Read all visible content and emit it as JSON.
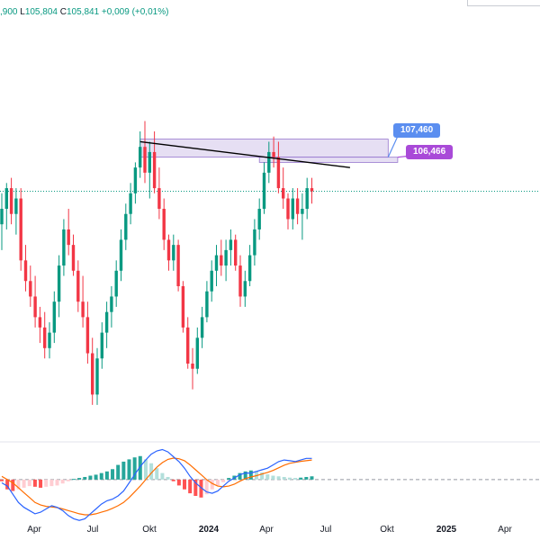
{
  "legend": {
    "open_value": ",900",
    "low_key": "L",
    "low_value": "105,804",
    "close_key": "C",
    "close_value": "105,841",
    "change": "+0,009 (+0,01%)"
  },
  "price_labels": [
    {
      "text": "107,460",
      "color": "#5b8ef0"
    },
    {
      "text": "106,466",
      "color": "#a94ad8"
    }
  ],
  "colors": {
    "up": "#089981",
    "down": "#f23645",
    "macd_line": "#2962ff",
    "signal_line": "#ff6d00",
    "hist_up_strong": "#26a69a",
    "hist_up_weak": "#b2dfdb",
    "hist_down_strong": "#ff5252",
    "hist_down_weak": "#ffcdd2",
    "current_price_line": "#089981"
  },
  "chart_data": [
    {
      "type": "candlestick",
      "title": "",
      "xlabel": "",
      "ylabel": "",
      "x_ticks": [
        "Apr",
        "Jul",
        "Okt",
        "2024",
        "Apr",
        "Jul",
        "Okt",
        "2025",
        "Apr"
      ],
      "ylim": [
        101.0,
        108.5
      ],
      "grid": false,
      "series": [
        {
          "values": [
            [
              105.2,
              105.8,
              104.7,
              105.5
            ],
            [
              105.5,
              106.0,
              105.1,
              105.9
            ],
            [
              105.9,
              106.1,
              105.2,
              105.4
            ],
            [
              105.4,
              105.9,
              105.0,
              105.7
            ],
            [
              105.7,
              105.9,
              104.3,
              104.5
            ],
            [
              104.5,
              104.8,
              103.9,
              104.1
            ],
            [
              104.1,
              104.4,
              103.6,
              103.8
            ],
            [
              103.8,
              104.2,
              103.2,
              103.4
            ],
            [
              103.4,
              103.6,
              102.9,
              103.2
            ],
            [
              103.2,
              103.5,
              102.6,
              102.8
            ],
            [
              102.8,
              103.3,
              102.6,
              103.1
            ],
            [
              103.1,
              103.9,
              102.9,
              103.7
            ],
            [
              103.7,
              104.6,
              103.4,
              104.4
            ],
            [
              104.4,
              105.3,
              104.2,
              105.1
            ],
            [
              105.1,
              105.5,
              104.6,
              104.8
            ],
            [
              104.8,
              105.0,
              104.2,
              104.3
            ],
            [
              104.3,
              104.5,
              103.5,
              103.7
            ],
            [
              103.7,
              104.2,
              103.2,
              103.4
            ],
            [
              103.4,
              103.7,
              102.5,
              102.7
            ],
            [
              102.7,
              103.0,
              101.7,
              101.9
            ],
            [
              101.9,
              102.8,
              101.7,
              102.6
            ],
            [
              102.6,
              103.3,
              102.4,
              103.1
            ],
            [
              103.1,
              103.7,
              102.8,
              103.5
            ],
            [
              103.5,
              104.0,
              103.2,
              103.8
            ],
            [
              103.8,
              104.5,
              103.6,
              104.3
            ],
            [
              104.3,
              105.1,
              104.1,
              104.9
            ],
            [
              104.9,
              105.6,
              104.7,
              105.4
            ],
            [
              105.4,
              106.0,
              105.2,
              105.8
            ],
            [
              105.8,
              106.4,
              105.6,
              106.3
            ],
            [
              106.3,
              107.0,
              106.1,
              106.7
            ],
            [
              106.7,
              107.2,
              106.0,
              106.2
            ],
            [
              106.2,
              106.8,
              105.7,
              106.6
            ],
            [
              106.6,
              107.0,
              105.8,
              105.9
            ],
            [
              105.9,
              106.3,
              105.3,
              105.5
            ],
            [
              105.5,
              105.7,
              104.7,
              104.9
            ],
            [
              104.9,
              105.0,
              104.3,
              104.5
            ],
            [
              104.5,
              105.0,
              104.3,
              104.8
            ],
            [
              104.8,
              104.9,
              103.9,
              104.0
            ],
            [
              104.0,
              104.1,
              103.1,
              103.2
            ],
            [
              103.2,
              103.4,
              102.4,
              102.5
            ],
            [
              102.5,
              102.8,
              102.0,
              102.4
            ],
            [
              102.4,
              103.2,
              102.3,
              103.0
            ],
            [
              103.0,
              103.6,
              102.8,
              103.4
            ],
            [
              103.4,
              104.1,
              103.3,
              103.9
            ],
            [
              103.9,
              104.5,
              103.7,
              104.3
            ],
            [
              104.3,
              104.8,
              104.0,
              104.6
            ],
            [
              104.6,
              104.9,
              104.2,
              104.4
            ],
            [
              104.4,
              104.9,
              104.1,
              104.7
            ],
            [
              104.7,
              105.1,
              104.4,
              104.9
            ],
            [
              104.9,
              105.0,
              104.3,
              104.4
            ],
            [
              104.4,
              104.6,
              103.6,
              103.8
            ],
            [
              103.8,
              104.3,
              103.6,
              104.1
            ],
            [
              104.1,
              104.8,
              104.0,
              104.6
            ],
            [
              104.6,
              105.3,
              104.4,
              105.1
            ],
            [
              105.1,
              105.7,
              104.9,
              105.5
            ],
            [
              105.5,
              106.4,
              105.4,
              106.2
            ],
            [
              106.2,
              106.8,
              106.0,
              106.6
            ],
            [
              106.6,
              106.9,
              106.3,
              106.5
            ],
            [
              106.5,
              106.8,
              105.8,
              105.9
            ],
            [
              105.9,
              106.3,
              105.5,
              105.7
            ],
            [
              105.7,
              105.8,
              105.1,
              105.3
            ],
            [
              105.3,
              105.9,
              105.1,
              105.7
            ],
            [
              105.7,
              105.9,
              105.2,
              105.4
            ],
            [
              105.4,
              105.8,
              104.9,
              105.5
            ],
            [
              105.5,
              106.1,
              105.3,
              105.9
            ],
            [
              105.9,
              106.1,
              105.6,
              105.84
            ]
          ]
        }
      ],
      "annotations": [
        {
          "type": "zone",
          "from": 106.5,
          "to": 106.85
        },
        {
          "type": "zone",
          "from": 106.4,
          "to": 106.5
        },
        {
          "type": "trendline"
        },
        {
          "type": "price_line",
          "value": 105.84
        }
      ]
    },
    {
      "type": "macd",
      "title": "",
      "zero_line": 0,
      "ylim": [
        -1.3,
        1.1
      ],
      "series": [
        {
          "values": [
            -0.1,
            -0.2,
            -0.45,
            -0.7,
            -0.85,
            -0.95,
            -1.05,
            -1.0,
            -0.9,
            -0.8,
            -0.85,
            -0.95,
            -1.1,
            -1.2,
            -1.25,
            -1.2,
            -1.05,
            -0.9,
            -0.75,
            -0.65,
            -0.6,
            -0.5,
            -0.35,
            -0.1,
            0.15,
            0.4,
            0.6,
            0.78,
            0.88,
            0.92,
            0.85,
            0.7,
            0.55,
            0.35,
            0.1,
            -0.1,
            -0.25,
            -0.38,
            -0.42,
            -0.35,
            -0.2,
            -0.05,
            0.05,
            0.15,
            0.2,
            0.2,
            0.25,
            0.3,
            0.35,
            0.45,
            0.55,
            0.6,
            0.58,
            0.55,
            0.6,
            0.65,
            0.65
          ]
        },
        {
          "values": [
            0.1,
            0.0,
            -0.1,
            -0.25,
            -0.4,
            -0.55,
            -0.7,
            -0.78,
            -0.82,
            -0.84,
            -0.86,
            -0.9,
            -0.95,
            -1.0,
            -1.05,
            -1.08,
            -1.08,
            -1.05,
            -1.0,
            -0.95,
            -0.88,
            -0.8,
            -0.7,
            -0.55,
            -0.38,
            -0.2,
            0.0,
            0.2,
            0.38,
            0.52,
            0.62,
            0.66,
            0.64,
            0.58,
            0.45,
            0.3,
            0.15,
            0.0,
            -0.12,
            -0.2,
            -0.22,
            -0.2,
            -0.14,
            -0.05,
            0.03,
            0.08,
            0.12,
            0.17,
            0.22,
            0.28,
            0.36,
            0.44,
            0.5,
            0.53,
            0.56,
            0.58,
            0.6
          ]
        },
        {
          "values": [
            -0.05,
            -0.3,
            -0.35,
            -0.3,
            -0.25,
            -0.2,
            -0.22,
            -0.25,
            -0.22,
            -0.2,
            -0.18,
            -0.12,
            -0.05,
            0.02,
            0.05,
            0.08,
            0.12,
            0.15,
            0.2,
            0.25,
            0.32,
            0.45,
            0.55,
            0.62,
            0.68,
            0.72,
            0.62,
            0.5,
            0.35,
            0.2,
            0.08,
            -0.05,
            -0.18,
            -0.3,
            -0.42,
            -0.5,
            -0.55,
            -0.45,
            -0.3,
            -0.18,
            -0.08,
            0.05,
            0.12,
            0.2,
            0.25,
            0.28,
            0.26,
            0.22,
            0.16,
            0.12,
            0.1,
            0.08,
            0.06,
            0.05,
            0.06,
            0.08,
            0.1
          ]
        }
      ]
    }
  ]
}
